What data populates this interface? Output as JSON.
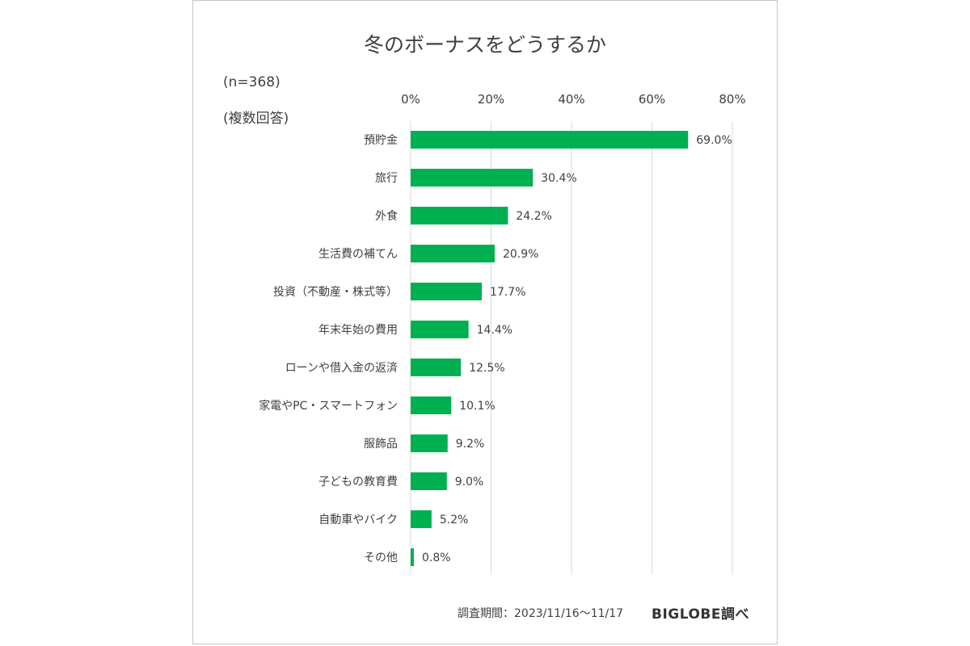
{
  "chart_data": {
    "type": "bar",
    "orientation": "horizontal",
    "title": "冬のボーナスをどうするか",
    "notes": [
      "(n=368)",
      "(複数回答)"
    ],
    "categories": [
      "預貯金",
      "旅行",
      "外食",
      "生活費の補てん",
      "投資（不動産・株式等）",
      "年末年始の費用",
      "ローンや借入金の返済",
      "家電やPC・スマートフォン",
      "服飾品",
      "子どもの教育費",
      "自動車やバイク",
      "その他"
    ],
    "values": [
      69.0,
      30.4,
      24.2,
      20.9,
      17.7,
      14.4,
      12.5,
      10.1,
      9.2,
      9.0,
      5.2,
      0.8
    ],
    "value_labels": [
      "69.0%",
      "30.4%",
      "24.2%",
      "20.9%",
      "17.7%",
      "14.4%",
      "12.5%",
      "10.1%",
      "9.2%",
      "9.0%",
      "5.2%",
      "0.8%"
    ],
    "x_ticks": [
      "0%",
      "20%",
      "40%",
      "60%",
      "80%"
    ],
    "xlim": [
      0,
      80
    ],
    "x_axis_position": "top",
    "grid": true,
    "bar_color": "#00b050",
    "grid_color": "#d9d9d9"
  },
  "footer": {
    "period": "調査期間：2023/11/16～11/17",
    "brand": "BIGLOBE調べ"
  }
}
